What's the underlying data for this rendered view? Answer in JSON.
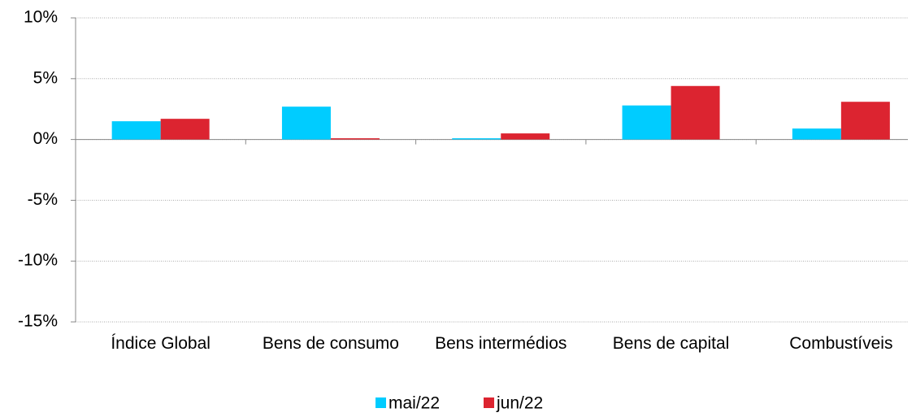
{
  "chart_data": {
    "type": "bar",
    "categories": [
      "Índice Global",
      "Bens de consumo",
      "Bens intermédios",
      "Bens de capital",
      "Combustíveis"
    ],
    "series": [
      {
        "name": "mai/22",
        "color": "#00ccff",
        "values": [
          1.5,
          2.7,
          0.1,
          2.8,
          0.9
        ]
      },
      {
        "name": "jun/22",
        "color": "#dc2430",
        "values": [
          1.7,
          0.1,
          0.5,
          4.4,
          3.1
        ]
      }
    ],
    "ylim": [
      -15,
      10
    ],
    "yticks": [
      {
        "value": -15,
        "label": "-15%"
      },
      {
        "value": -10,
        "label": "-10%"
      },
      {
        "value": -5,
        "label": "-5%"
      },
      {
        "value": 0,
        "label": "0%"
      },
      {
        "value": 5,
        "label": "5%"
      },
      {
        "value": 10,
        "label": "10%"
      }
    ],
    "grid": true,
    "legend": "bottom"
  }
}
